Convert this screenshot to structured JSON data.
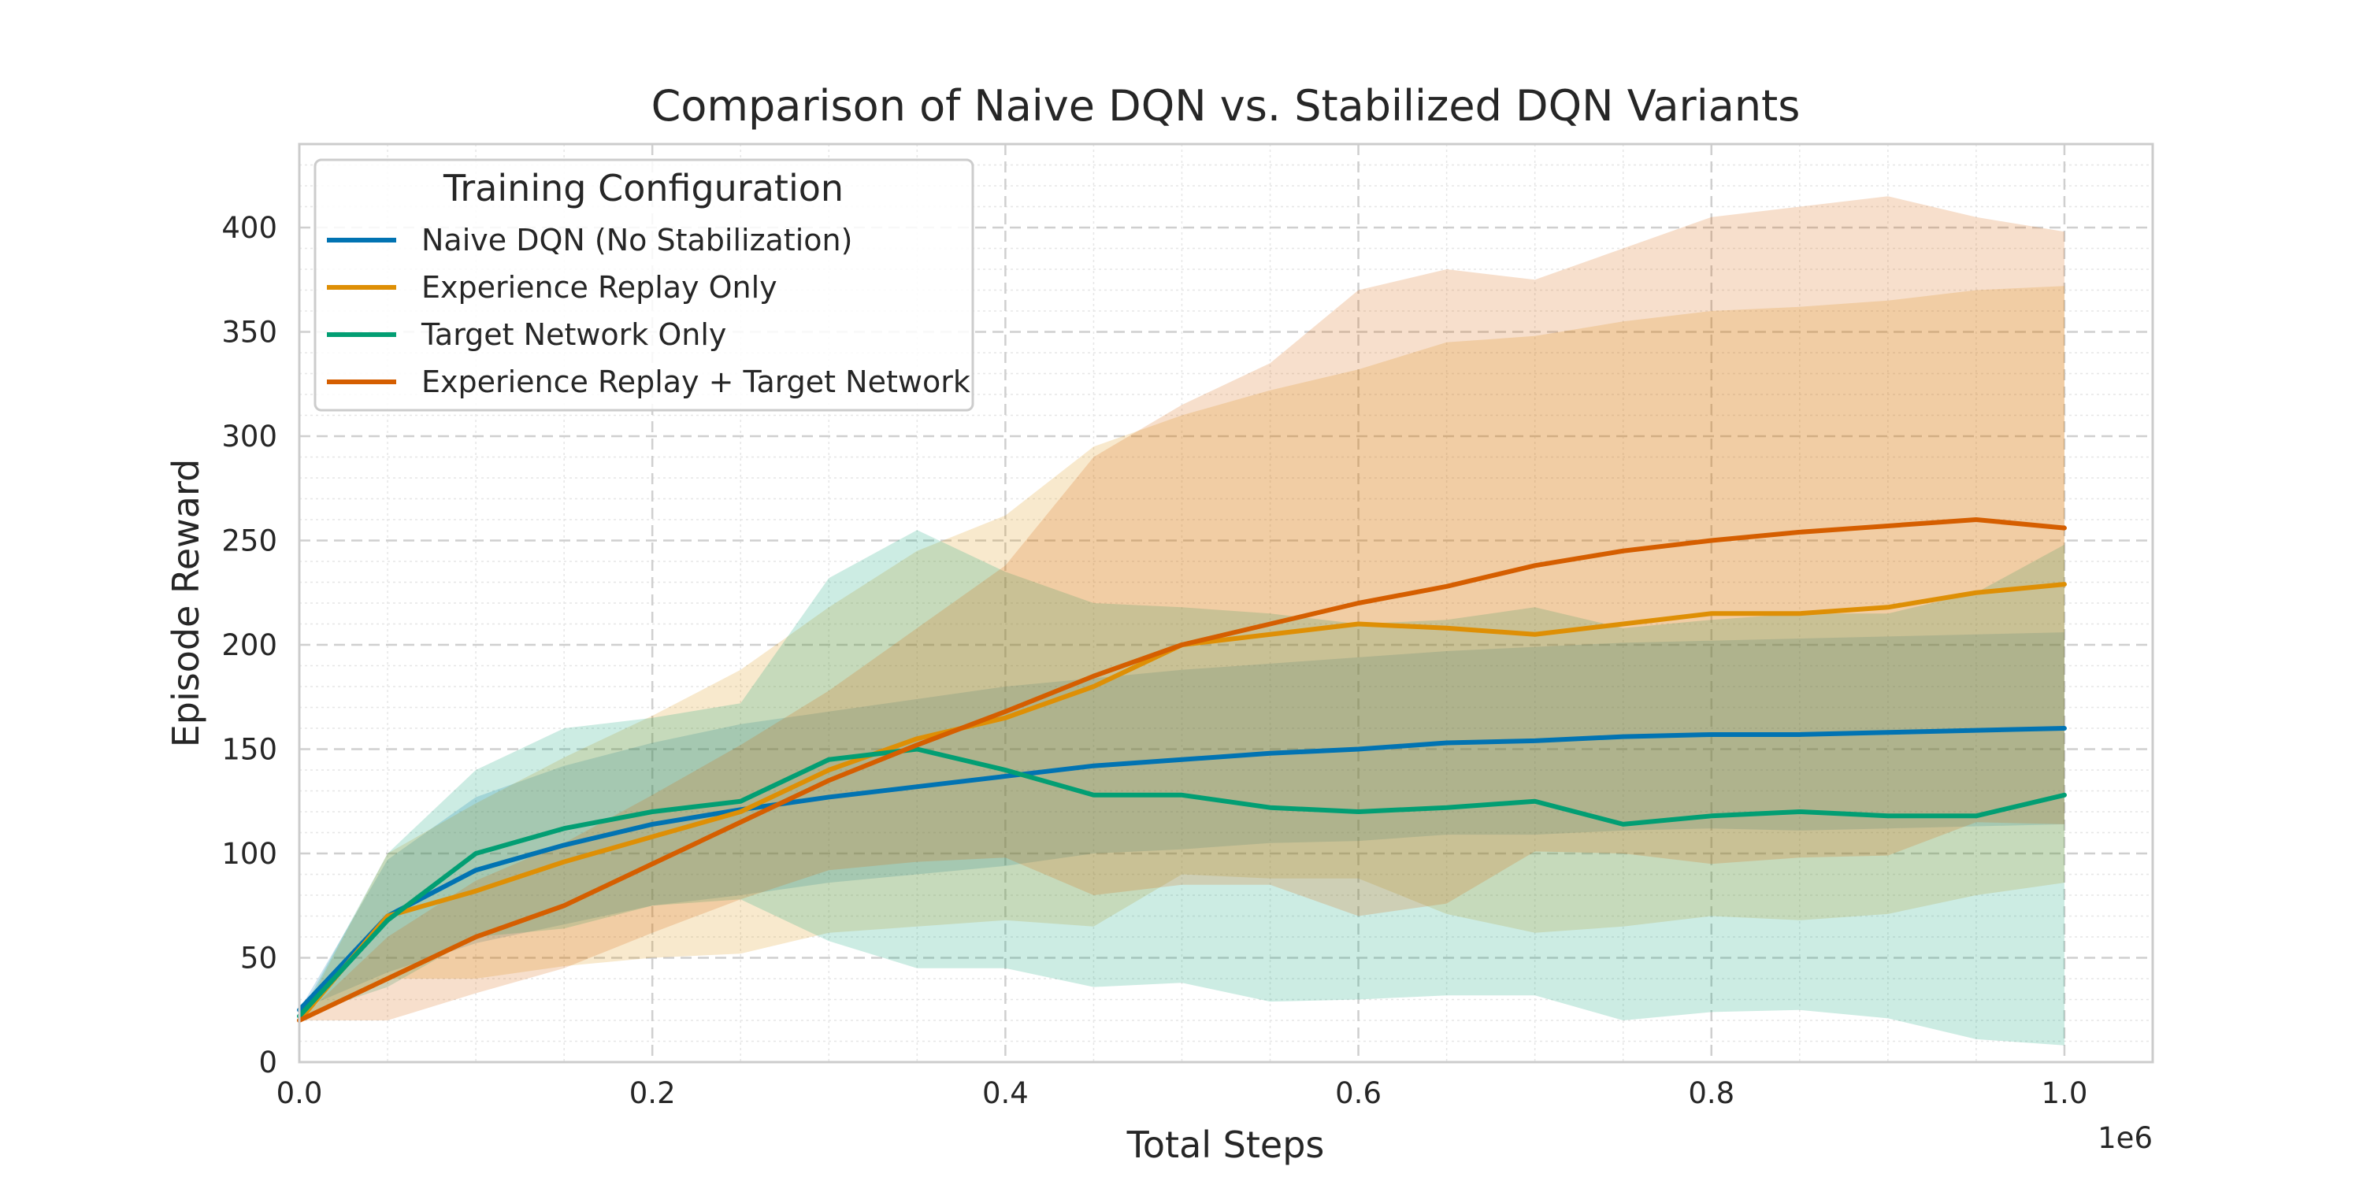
{
  "chart_data": {
    "type": "line",
    "title": "Comparison of Naive DQN vs. Stabilized DQN Variants",
    "xlabel": "Total Steps",
    "ylabel": "Episode Reward",
    "x_offset_label": "1e6",
    "xlim": [
      0,
      1.05
    ],
    "ylim": [
      0,
      440
    ],
    "xticks": [
      0.0,
      0.2,
      0.4,
      0.6,
      0.8,
      1.0
    ],
    "xtick_labels": [
      "0.0",
      "0.2",
      "0.4",
      "0.6",
      "0.8",
      "1.0"
    ],
    "yticks": [
      0,
      50,
      100,
      150,
      200,
      250,
      300,
      350,
      400
    ],
    "ytick_labels": [
      "0",
      "50",
      "100",
      "150",
      "200",
      "250",
      "300",
      "350",
      "400"
    ],
    "grid": true,
    "legend": {
      "title": "Training Configuration",
      "placement": "upper-left"
    },
    "x": [
      0.0,
      0.05,
      0.1,
      0.15,
      0.2,
      0.25,
      0.3,
      0.35,
      0.4,
      0.45,
      0.5,
      0.55,
      0.6,
      0.65,
      0.7,
      0.75,
      0.8,
      0.85,
      0.9,
      0.95,
      1.0
    ],
    "series": [
      {
        "name": "Naive DQN (No Stabilization)",
        "color": "#0173b2",
        "values": [
          25,
          70,
          92,
          104,
          114,
          121,
          127,
          132,
          137,
          142,
          145,
          148,
          150,
          153,
          154,
          156,
          157,
          157,
          158,
          159,
          160
        ],
        "upper": [
          25,
          97,
          127,
          142,
          153,
          162,
          168,
          174,
          180,
          184,
          188,
          191,
          194,
          197,
          199,
          201,
          202,
          203,
          204,
          205,
          206
        ],
        "lower": [
          25,
          43,
          57,
          66,
          75,
          80,
          86,
          90,
          94,
          100,
          102,
          105,
          106,
          109,
          109,
          111,
          112,
          111,
          112,
          113,
          114
        ]
      },
      {
        "name": "Experience Replay Only",
        "color": "#de8f05",
        "values": [
          20,
          70,
          82,
          96,
          108,
          120,
          140,
          155,
          165,
          180,
          200,
          205,
          210,
          208,
          205,
          210,
          215,
          215,
          218,
          225,
          229
        ],
        "upper": [
          20,
          100,
          124,
          146,
          166,
          188,
          218,
          245,
          262,
          295,
          310,
          322,
          332,
          345,
          348,
          355,
          360,
          362,
          365,
          370,
          372
        ],
        "lower": [
          20,
          40,
          40,
          46,
          50,
          52,
          62,
          65,
          68,
          65,
          90,
          88,
          88,
          71,
          62,
          65,
          70,
          68,
          71,
          80,
          86
        ]
      },
      {
        "name": "Target Network Only",
        "color": "#029e73",
        "values": [
          22,
          68,
          100,
          112,
          120,
          125,
          145,
          150,
          140,
          128,
          128,
          122,
          120,
          122,
          125,
          114,
          118,
          120,
          118,
          118,
          128
        ],
        "upper": [
          22,
          100,
          140,
          160,
          165,
          172,
          232,
          255,
          235,
          220,
          218,
          215,
          210,
          212,
          218,
          208,
          212,
          215,
          215,
          225,
          248
        ],
        "lower": [
          22,
          36,
          60,
          64,
          75,
          78,
          58,
          45,
          45,
          36,
          38,
          29,
          30,
          32,
          32,
          20,
          24,
          25,
          21,
          11,
          8
        ]
      },
      {
        "name": "Experience Replay + Target Network",
        "color": "#d55e00",
        "values": [
          20,
          40,
          60,
          75,
          95,
          115,
          135,
          152,
          168,
          185,
          200,
          210,
          220,
          228,
          238,
          245,
          250,
          254,
          257,
          260,
          256
        ],
        "upper": [
          20,
          60,
          87,
          105,
          128,
          152,
          178,
          208,
          238,
          290,
          315,
          335,
          370,
          380,
          375,
          390,
          405,
          410,
          415,
          405,
          398
        ],
        "lower": [
          20,
          20,
          33,
          45,
          62,
          78,
          92,
          96,
          98,
          80,
          85,
          85,
          70,
          76,
          101,
          100,
          95,
          98,
          99,
          115,
          114
        ]
      }
    ]
  }
}
